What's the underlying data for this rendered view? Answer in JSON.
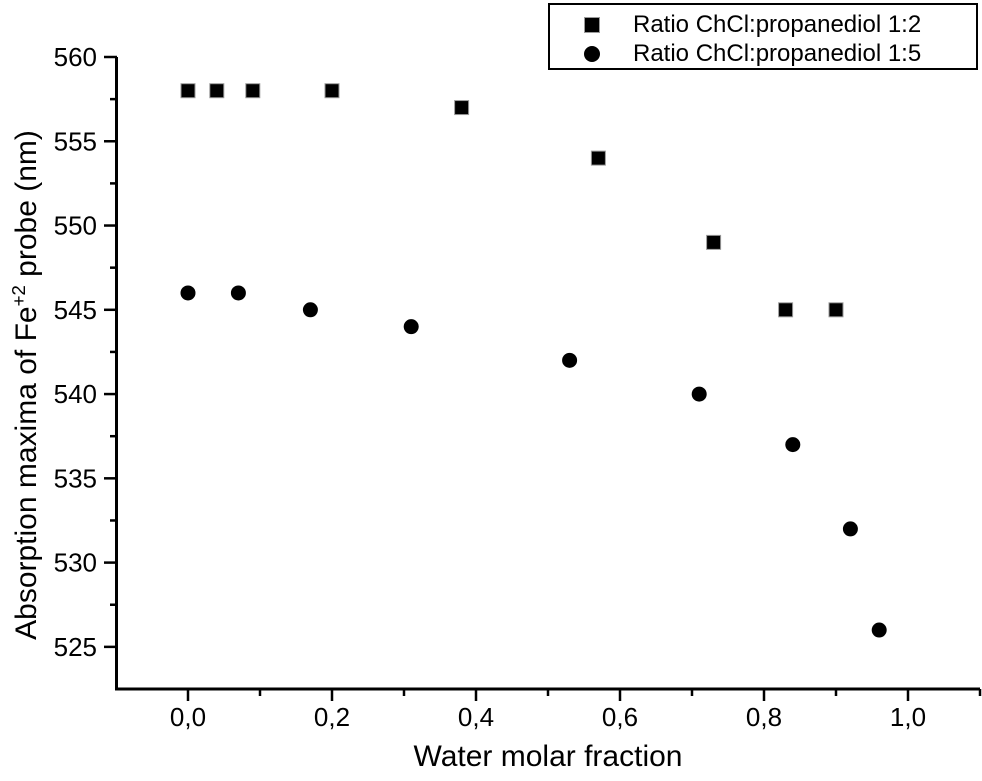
{
  "colors": {
    "foreground": "#000000",
    "background": "#ffffff"
  },
  "chart_data": {
    "type": "scatter",
    "title": "",
    "xlabel": "Water molar fraction",
    "ylabel": "Absorption maxima of Fe+2 probe (nm)",
    "ylabel_parts": {
      "pre": "Absorption maxima of Fe",
      "sup": "+2",
      "post": " probe (nm)"
    },
    "xlim": [
      -0.1,
      1.1
    ],
    "ylim": [
      522.5,
      560
    ],
    "grid": false,
    "legend_position": "top-right",
    "x_major_ticks": [
      0.0,
      0.2,
      0.4,
      0.6,
      0.8,
      1.0
    ],
    "x_tick_labels": [
      "0,0",
      "0,2",
      "0,4",
      "0,6",
      "0,8",
      "1,0"
    ],
    "x_minor_ticks": [
      0.1,
      0.3,
      0.5,
      0.7,
      0.9,
      1.1
    ],
    "y_major_ticks": [
      525,
      530,
      535,
      540,
      545,
      550,
      555,
      560
    ],
    "y_tick_labels": [
      "525",
      "530",
      "535",
      "540",
      "545",
      "550",
      "555",
      "560"
    ],
    "y_minor_ticks": [
      527.5,
      532.5,
      537.5,
      542.5,
      547.5,
      552.5,
      557.5
    ],
    "series": [
      {
        "name": "Ratio ChCl:propanediol 1:2",
        "marker": "square",
        "color": "#000000",
        "points": [
          [
            0.0,
            558
          ],
          [
            0.04,
            558
          ],
          [
            0.09,
            558
          ],
          [
            0.2,
            558
          ],
          [
            0.38,
            557
          ],
          [
            0.57,
            554
          ],
          [
            0.73,
            549
          ],
          [
            0.83,
            545
          ],
          [
            0.9,
            545
          ]
        ]
      },
      {
        "name": "Ratio ChCl:propanediol 1:5",
        "marker": "circle",
        "color": "#000000",
        "points": [
          [
            0.0,
            546
          ],
          [
            0.07,
            546
          ],
          [
            0.17,
            545
          ],
          [
            0.31,
            544
          ],
          [
            0.53,
            542
          ],
          [
            0.71,
            540
          ],
          [
            0.84,
            537
          ],
          [
            0.92,
            532
          ],
          [
            0.96,
            526
          ]
        ]
      }
    ]
  }
}
